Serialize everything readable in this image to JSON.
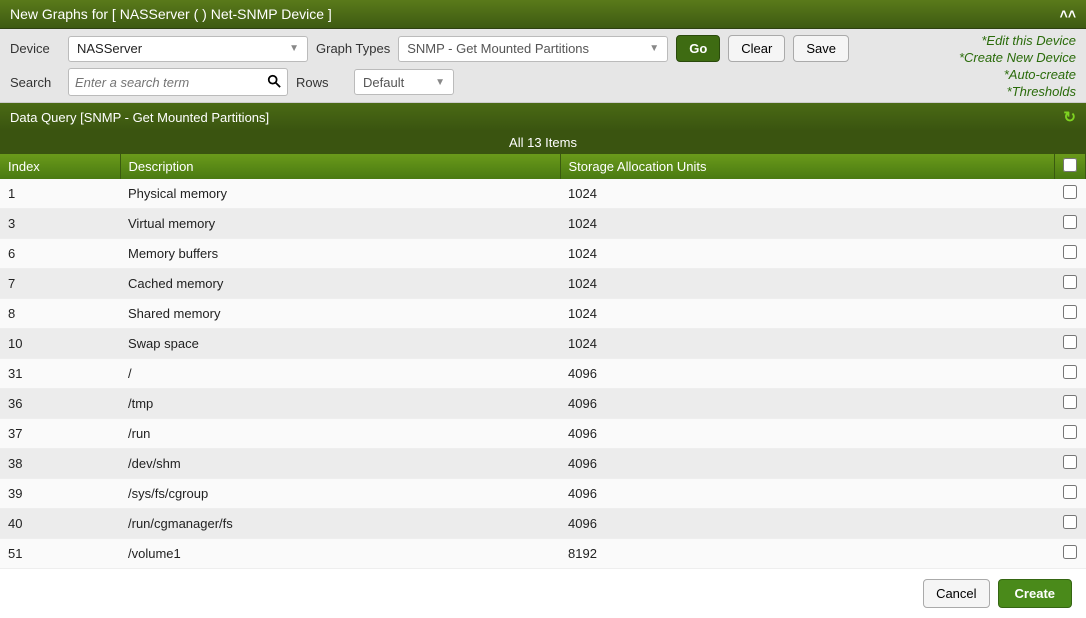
{
  "header": {
    "title": "New Graphs for [ NASServer (                        ) Net-SNMP Device ]"
  },
  "toolbar": {
    "device_label": "Device",
    "device_value": "NASServer",
    "graph_types_label": "Graph Types",
    "graph_types_value": "SNMP - Get Mounted Partitions",
    "go_label": "Go",
    "clear_label": "Clear",
    "save_label": "Save",
    "search_label": "Search",
    "search_placeholder": "Enter a search term",
    "rows_label": "Rows",
    "rows_value": "Default"
  },
  "action_links": {
    "edit": "Edit this Device",
    "create": "Create New Device",
    "auto": "Auto-create",
    "thresholds": "Thresholds"
  },
  "query": {
    "title": "Data Query [SNMP - Get Mounted Partitions]",
    "count_label": "All 13 Items",
    "columns": {
      "index": "Index",
      "description": "Description",
      "units": "Storage Allocation Units"
    },
    "rows": [
      {
        "index": "1",
        "description": "Physical memory",
        "units": "1024"
      },
      {
        "index": "3",
        "description": "Virtual memory",
        "units": "1024"
      },
      {
        "index": "6",
        "description": "Memory buffers",
        "units": "1024"
      },
      {
        "index": "7",
        "description": "Cached memory",
        "units": "1024"
      },
      {
        "index": "8",
        "description": "Shared memory",
        "units": "1024"
      },
      {
        "index": "10",
        "description": "Swap space",
        "units": "1024"
      },
      {
        "index": "31",
        "description": "/",
        "units": "4096"
      },
      {
        "index": "36",
        "description": "/tmp",
        "units": "4096"
      },
      {
        "index": "37",
        "description": "/run",
        "units": "4096"
      },
      {
        "index": "38",
        "description": "/dev/shm",
        "units": "4096"
      },
      {
        "index": "39",
        "description": "/sys/fs/cgroup",
        "units": "4096"
      },
      {
        "index": "40",
        "description": "/run/cgmanager/fs",
        "units": "4096"
      },
      {
        "index": "51",
        "description": "/volume1",
        "units": "8192"
      }
    ]
  },
  "footer": {
    "cancel_label": "Cancel",
    "create_label": "Create"
  },
  "colors": {
    "header_bg_top": "#5a7a1a",
    "header_bg_bottom": "#3e5a12",
    "table_header_top": "#6a9a1a",
    "table_header_bottom": "#4a7a12",
    "row_even": "#ececec",
    "row_odd": "#fafafa",
    "link_green": "#2a6b0a",
    "btn_go_bg": "#3e6b12",
    "btn_create_bg": "#4a8a1a"
  }
}
